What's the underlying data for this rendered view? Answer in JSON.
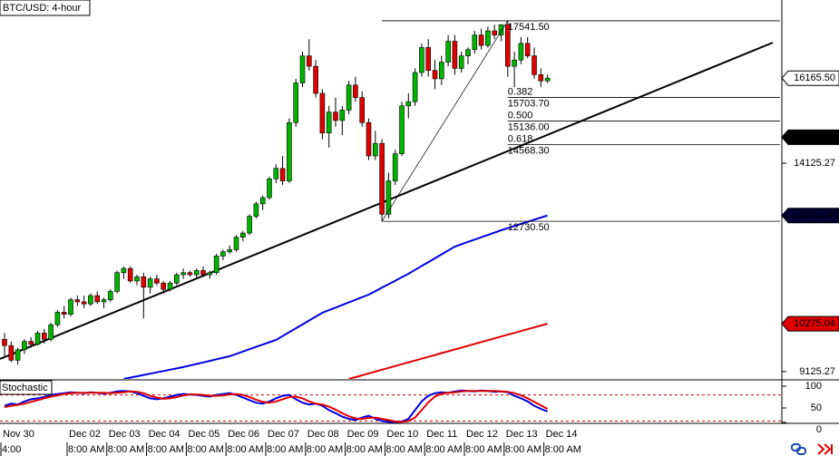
{
  "chart_data": [
    {
      "type": "candlestick",
      "title": "BTC/USD: 4-hour",
      "categories": [
        "Nov 30",
        null,
        null,
        null,
        null,
        null,
        null,
        null,
        null,
        null,
        "Dec 02",
        null,
        null,
        null,
        null,
        null,
        "Dec 03",
        null,
        null,
        null,
        null,
        null,
        "Dec 04",
        null,
        null,
        null,
        null,
        null,
        "Dec 05",
        null,
        null,
        null,
        null,
        null,
        "Dec 06",
        null,
        null,
        null,
        null,
        null,
        "Dec 07",
        null,
        null,
        null,
        null,
        null,
        "Dec 08",
        null,
        null,
        null,
        null,
        null,
        "Dec 09",
        null,
        null,
        null,
        null,
        null,
        "Dec 10",
        null,
        null,
        null,
        null,
        null,
        "Dec 11",
        null,
        null,
        null,
        null,
        null,
        "Dec 12",
        null,
        null,
        null,
        null,
        null,
        "Dec 13",
        null,
        null,
        null,
        null,
        null,
        "Dec 14"
      ],
      "time_labels": [
        "4:00",
        null,
        null,
        null,
        null,
        null,
        null,
        null,
        null,
        null,
        "8:00 AM",
        null,
        null,
        null,
        null,
        null,
        "8:00 AM",
        null,
        null,
        null,
        null,
        null,
        "8:00 AM",
        null,
        null,
        null,
        null,
        null,
        "8:00 AM",
        null,
        null,
        null,
        null,
        null,
        "8:00 AM",
        null,
        null,
        null,
        null,
        null,
        "8:00 AM",
        null,
        null,
        null,
        null,
        null,
        "8:00 AM",
        null,
        null,
        null,
        null,
        null,
        "8:00 AM",
        null,
        null,
        null,
        null,
        null,
        "8:00 AM",
        null,
        null,
        null,
        null,
        null,
        "8:00 AM",
        null,
        null,
        null,
        null,
        null,
        "8:00 AM",
        null,
        null,
        null,
        null,
        null,
        "8:00 AM",
        null,
        null,
        null,
        null,
        null,
        "8:00 AM"
      ],
      "open": [
        9900,
        9750,
        9400,
        9650,
        9850,
        9780,
        10050,
        9900,
        10250,
        10550,
        10500,
        10850,
        10800,
        10750,
        10950,
        10800,
        10850,
        11050,
        11500,
        11600,
        11300,
        11400,
        11150,
        11350,
        11250,
        11100,
        11250,
        11450,
        11500,
        11450,
        11550,
        11450,
        11500,
        11900,
        12000,
        12050,
        12350,
        12450,
        12850,
        13150,
        13300,
        13750,
        14000,
        13700,
        15100,
        16050,
        16700,
        16450,
        15800,
        14850,
        15350,
        15150,
        15400,
        16000,
        15700,
        15100,
        14300,
        14600,
        12900,
        13700,
        14350,
        15500,
        15600,
        16300,
        16900,
        16350,
        16150,
        16550,
        17050,
        16400,
        16700,
        16850,
        17200,
        16950,
        17300,
        17200,
        17450,
        16450,
        16600,
        17000,
        16700,
        16250,
        16100
      ],
      "high": [
        10050,
        9850,
        9700,
        9900,
        9950,
        10100,
        10150,
        10300,
        10600,
        10700,
        10900,
        10950,
        10950,
        11000,
        11050,
        10900,
        11100,
        11550,
        11650,
        11650,
        11450,
        11500,
        11400,
        11450,
        11300,
        11300,
        11500,
        11600,
        11550,
        11600,
        11650,
        11550,
        11950,
        12050,
        12150,
        12400,
        12500,
        12900,
        13200,
        13350,
        13800,
        14100,
        14300,
        15200,
        16150,
        16800,
        17100,
        16600,
        15900,
        15500,
        15700,
        15500,
        16100,
        16200,
        15850,
        15200,
        14900,
        14700,
        13900,
        14450,
        15600,
        15800,
        16400,
        17000,
        17100,
        16600,
        16700,
        17200,
        17200,
        16800,
        16900,
        17300,
        17350,
        17400,
        17450,
        17450,
        17541.5,
        16800,
        17150,
        17150,
        16900,
        16400,
        16250
      ],
      "low": [
        9500,
        9350,
        9300,
        9550,
        9700,
        9750,
        9800,
        9850,
        10200,
        10400,
        10450,
        10700,
        10650,
        10700,
        10750,
        10650,
        10800,
        11000,
        11350,
        11250,
        11200,
        10400,
        11000,
        11200,
        11000,
        11050,
        11200,
        11350,
        11400,
        11350,
        11400,
        11350,
        11450,
        11800,
        11950,
        12000,
        12250,
        12400,
        12800,
        13000,
        13250,
        13650,
        13600,
        13650,
        15000,
        15950,
        16350,
        15700,
        14700,
        14500,
        15000,
        14800,
        15300,
        15600,
        15000,
        14200,
        14200,
        12730.5,
        12800,
        13600,
        14300,
        15200,
        15500,
        16200,
        16200,
        15900,
        16000,
        16450,
        16250,
        16300,
        16500,
        16750,
        16850,
        16900,
        17100,
        17050,
        16200,
        15950,
        16500,
        16650,
        16150,
        15950,
        16050
      ],
      "close": [
        9750,
        9400,
        9650,
        9850,
        9780,
        10050,
        9900,
        10250,
        10550,
        10500,
        10850,
        10800,
        10750,
        10950,
        10800,
        10850,
        11050,
        11500,
        11600,
        11300,
        11400,
        11150,
        11350,
        11250,
        11100,
        11250,
        11450,
        11500,
        11450,
        11550,
        11450,
        11500,
        11900,
        12000,
        12050,
        12350,
        12450,
        12850,
        13150,
        13300,
        13750,
        14000,
        13700,
        15100,
        16050,
        16700,
        16450,
        15800,
        14850,
        15350,
        15150,
        15400,
        16000,
        15700,
        15100,
        14300,
        14600,
        12900,
        13700,
        14350,
        15500,
        15600,
        16300,
        16900,
        16350,
        16150,
        16550,
        17050,
        16400,
        16700,
        16850,
        17200,
        16950,
        17300,
        17200,
        17450,
        16450,
        16600,
        17000,
        16700,
        16250,
        16100,
        16165.5
      ],
      "up_color": "#00b400",
      "down_color": "#e00000",
      "series": [
        {
          "color": "#0000e0",
          "values": [
            null,
            null,
            null,
            null,
            null,
            null,
            null,
            null,
            null,
            null,
            null,
            null,
            null,
            null,
            null,
            null,
            null,
            null,
            8950,
            8982,
            9013,
            9045,
            9076,
            9108,
            9139,
            9171,
            9203,
            9234,
            9271,
            9309,
            9346,
            9383,
            9421,
            9458,
            9495,
            9551,
            9607,
            9663,
            9719,
            9774,
            9830,
            9886,
            9979,
            10072,
            10165,
            10258,
            10352,
            10445,
            10538,
            10600,
            10662,
            10724,
            10787,
            10849,
            10911,
            10973,
            11056,
            11140,
            11223,
            11306,
            11390,
            11473,
            11566,
            11659,
            11752,
            11845,
            11939,
            12032,
            12125,
            12181,
            12237,
            12293,
            12349,
            12404,
            12460,
            12516,
            12567,
            12618,
            12668,
            12719,
            12770,
            12820,
            12871.08
          ]
        },
        {
          "color": "#e00000",
          "values": [
            null,
            null,
            null,
            null,
            null,
            null,
            null,
            null,
            null,
            null,
            null,
            null,
            null,
            null,
            null,
            null,
            null,
            null,
            null,
            null,
            null,
            null,
            null,
            null,
            null,
            null,
            null,
            null,
            null,
            null,
            null,
            null,
            null,
            null,
            null,
            null,
            null,
            null,
            null,
            null,
            null,
            null,
            null,
            null,
            null,
            null,
            null,
            null,
            null,
            null,
            null,
            null,
            8950,
            8994,
            9038,
            9083,
            9127,
            9171,
            9215,
            9259,
            9304,
            9348,
            9392,
            9436,
            9480,
            9525,
            9569,
            9613,
            9657,
            9701,
            9746,
            9790,
            9834,
            9878,
            9922,
            9967,
            10011,
            10055,
            10099,
            10143,
            10187,
            10231,
            10275.04
          ]
        }
      ],
      "ylim": [
        8950,
        18040
      ],
      "yticks": [
        14125.27,
        9125.27
      ],
      "price_markers": [
        {
          "value": 16165.5,
          "label": "16165.50",
          "color": "#ffffff",
          "text_color": "#000000"
        },
        {
          "value": 14747.78,
          "label": "14747.78",
          "color": "#000000",
          "text_color": "#ffffff"
        },
        {
          "value": 12871.08,
          "label": "12871.08",
          "color": "#000033",
          "text_color": "#ffffff"
        },
        {
          "value": 10275.04,
          "label": "10275.04",
          "color": "#e00000",
          "text_color": "#ffffff"
        }
      ],
      "fib_high": {
        "value": 17541.5,
        "label": "17541.50"
      },
      "fib_low": {
        "value": 12730.5,
        "label": "12730.50"
      },
      "fib_levels": [
        {
          "ratio": 0.382,
          "price": {
            "value": 15703.7,
            "label": "15703.70"
          }
        },
        {
          "ratio": {
            "value": 0.5,
            "label": "0.500"
          },
          "price": {
            "value": 15136,
            "label": "15136.00"
          }
        },
        {
          "ratio": 0.618,
          "price": {
            "value": 14568.3,
            "label": "14568.30"
          }
        }
      ]
    },
    {
      "type": "line",
      "title": "Stochastic",
      "ylim": [
        0,
        100
      ],
      "yticks": [
        100,
        50,
        0
      ],
      "levels": [
        80,
        20
      ],
      "series": [
        {
          "color": "#0000e0",
          "values": [
            55,
            60,
            58,
            65,
            70,
            72,
            75,
            80,
            82,
            84,
            86,
            85,
            84,
            86,
            85,
            83,
            85,
            88,
            89,
            88,
            84,
            78,
            72,
            70,
            72,
            76,
            80,
            82,
            81,
            80,
            78,
            76,
            80,
            82,
            84,
            80,
            74,
            68,
            62,
            60,
            65,
            72,
            78,
            80,
            70,
            62,
            58,
            60,
            55,
            45,
            38,
            30,
            25,
            22,
            28,
            32,
            25,
            20,
            18,
            17,
            19,
            25,
            45,
            65,
            78,
            84,
            86,
            85,
            88,
            90,
            89,
            88,
            90,
            89,
            87,
            88,
            86,
            78,
            72,
            65,
            55,
            48,
            42
          ]
        },
        {
          "color": "#e00000",
          "values": [
            52,
            55,
            57,
            60,
            64,
            68,
            72,
            76,
            79,
            82,
            84,
            85,
            85,
            85,
            85,
            85,
            84,
            85,
            86,
            88,
            87,
            84,
            78,
            74,
            71,
            72,
            75,
            79,
            81,
            81,
            80,
            78,
            78,
            79,
            81,
            82,
            80,
            75,
            69,
            64,
            62,
            65,
            70,
            75,
            76,
            72,
            65,
            60,
            58,
            53,
            46,
            38,
            31,
            26,
            25,
            27,
            28,
            25,
            22,
            19,
            18,
            20,
            28,
            45,
            63,
            76,
            83,
            85,
            86,
            88,
            89,
            89,
            89,
            89,
            89,
            88,
            87,
            84,
            79,
            72,
            64,
            56,
            48
          ]
        }
      ]
    }
  ]
}
